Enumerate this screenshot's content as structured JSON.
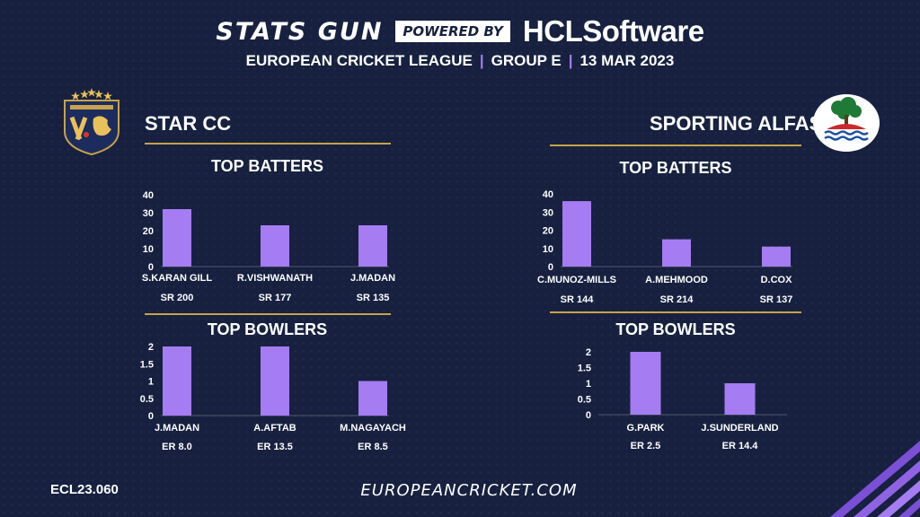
{
  "header": {
    "brand": "STATS GUN",
    "powered_by": "POWERED BY",
    "sponsor_prefix": "HCL",
    "sponsor_suffix": "Software",
    "league": "EUROPEAN CRICKET LEAGUE",
    "group": "GROUP  E",
    "date": "13 MAR 2023",
    "separator": "|"
  },
  "colors": {
    "bar": "#a57cf2",
    "background": "#17213f",
    "gold_line": "#c8a24a"
  },
  "teams": {
    "left": {
      "name": "STAR CC",
      "logo": "star-cricket-club-crest"
    },
    "right": {
      "name": "SPORTING ALFAS",
      "logo": "sporting-alfas-tree-logo"
    }
  },
  "section_titles": {
    "batters": "TOP BATTERS",
    "bowlers": "TOP BOWLERS"
  },
  "chart_data": [
    {
      "id": "left_batters",
      "type": "bar",
      "team": "STAR CC",
      "title": "TOP BATTERS",
      "categories": [
        "S.KARAN GILL",
        "R.VISHWANATH",
        "J.MADAN"
      ],
      "values": [
        32,
        23,
        23
      ],
      "annotations": [
        "SR 200",
        "SR 177",
        "SR 135"
      ],
      "ylim": [
        0,
        40
      ],
      "yticks": [
        0,
        10,
        20,
        30,
        40
      ],
      "grid": false
    },
    {
      "id": "left_bowlers",
      "type": "bar",
      "team": "STAR CC",
      "title": "TOP BOWLERS",
      "categories": [
        "J.MADAN",
        "A.AFTAB",
        "M.NAGAYACH"
      ],
      "values": [
        2,
        2,
        1
      ],
      "annotations": [
        "ER 8.0",
        "ER 13.5",
        "ER 8.5"
      ],
      "ylim": [
        0,
        2
      ],
      "yticks": [
        0,
        0.5,
        1,
        1.5,
        2
      ],
      "grid": false
    },
    {
      "id": "right_batters",
      "type": "bar",
      "team": "SPORTING ALFAS",
      "title": "TOP BATTERS",
      "categories": [
        "C.MUNOZ-MILLS",
        "A.MEHMOOD",
        "D.COX"
      ],
      "values": [
        36,
        15,
        11
      ],
      "annotations": [
        "SR 144",
        "SR 214",
        "SR 137"
      ],
      "ylim": [
        0,
        40
      ],
      "yticks": [
        0,
        10,
        20,
        30,
        40
      ],
      "grid": false
    },
    {
      "id": "right_bowlers",
      "type": "bar",
      "team": "SPORTING ALFAS",
      "title": "TOP BOWLERS",
      "categories": [
        "G.PARK",
        "J.SUNDERLAND"
      ],
      "values": [
        2,
        1
      ],
      "annotations": [
        "ER 2.5",
        "ER 14.4"
      ],
      "ylim": [
        0,
        2
      ],
      "yticks": [
        0,
        0.5,
        1,
        1.5,
        2
      ],
      "grid": false
    }
  ],
  "footer": {
    "match_id": "ECL23.060",
    "website": "EUROPEANCRICKET.COM"
  }
}
